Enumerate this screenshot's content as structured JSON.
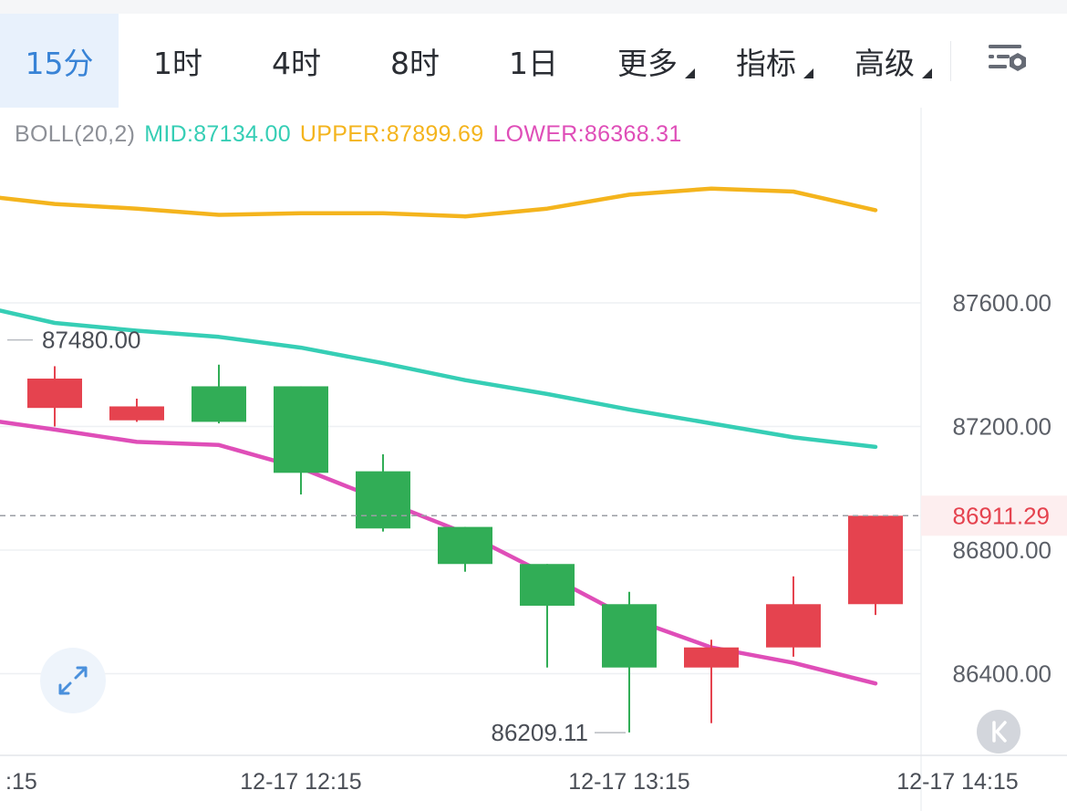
{
  "toolbar": {
    "tabs": [
      {
        "label": "15分",
        "active": true
      },
      {
        "label": "1时"
      },
      {
        "label": "4时"
      },
      {
        "label": "8时"
      },
      {
        "label": "1日"
      },
      {
        "label": "更多",
        "dropdown": true
      },
      {
        "label": "指标",
        "dropdown": true
      },
      {
        "label": "高级",
        "dropdown": true
      }
    ],
    "settings_icon": "chart-settings-icon"
  },
  "indicator": {
    "name": "BOLL(20,2)",
    "mid_label": "MID:87134.00",
    "upper_label": "UPPER:87899.69",
    "lower_label": "LOWER:86368.31"
  },
  "colors": {
    "up": "#e5434f",
    "down": "#31ad56",
    "mid": "#36ceb5",
    "upper": "#f4b41d",
    "lower": "#df4eb8",
    "accent": "#3883d6",
    "price_line": "#9b9ea4"
  },
  "chart_data": {
    "type": "candlestick",
    "y_ticks": [
      "87600.00",
      "87200.00",
      "86800.00",
      "86400.00"
    ],
    "x_ticks": [
      ":15",
      "12-17 12:15",
      "12-17 13:15",
      "12-17 14:15"
    ],
    "current_price": "86911.29",
    "high_marker": "87480.00",
    "low_marker": "86209.11",
    "candles": [
      {
        "open": 87260,
        "close": 87355,
        "high": 87395,
        "low": 87200
      },
      {
        "open": 87220,
        "close": 87265,
        "high": 87290,
        "low": 87215
      },
      {
        "open": 87330,
        "close": 87215,
        "high": 87400,
        "low": 87210
      },
      {
        "open": 87330,
        "close": 87050,
        "high": 87330,
        "low": 86980
      },
      {
        "open": 87055,
        "close": 86870,
        "high": 87110,
        "low": 86860
      },
      {
        "open": 86875,
        "close": 86755,
        "high": 86875,
        "low": 86730
      },
      {
        "open": 86755,
        "close": 86620,
        "high": 86755,
        "low": 86420
      },
      {
        "open": 86625,
        "close": 86420,
        "high": 86665,
        "low": 86210
      },
      {
        "open": 86420,
        "close": 86485,
        "high": 86510,
        "low": 86240
      },
      {
        "open": 86485,
        "close": 86625,
        "high": 86715,
        "low": 86455
      },
      {
        "open": 86625,
        "close": 86911.29,
        "high": 86911.29,
        "low": 86590
      }
    ],
    "boll_upper": [
      87940,
      87920,
      87905,
      87885,
      87890,
      87890,
      87880,
      87905,
      87950,
      87970,
      87960,
      87900
    ],
    "boll_mid": [
      87575,
      87535,
      87510,
      87490,
      87455,
      87405,
      87350,
      87305,
      87255,
      87210,
      87165,
      87134
    ],
    "boll_lower": [
      87215,
      87190,
      87150,
      87140,
      87065,
      86960,
      86855,
      86720,
      86580,
      86485,
      86435,
      86368.31
    ]
  }
}
